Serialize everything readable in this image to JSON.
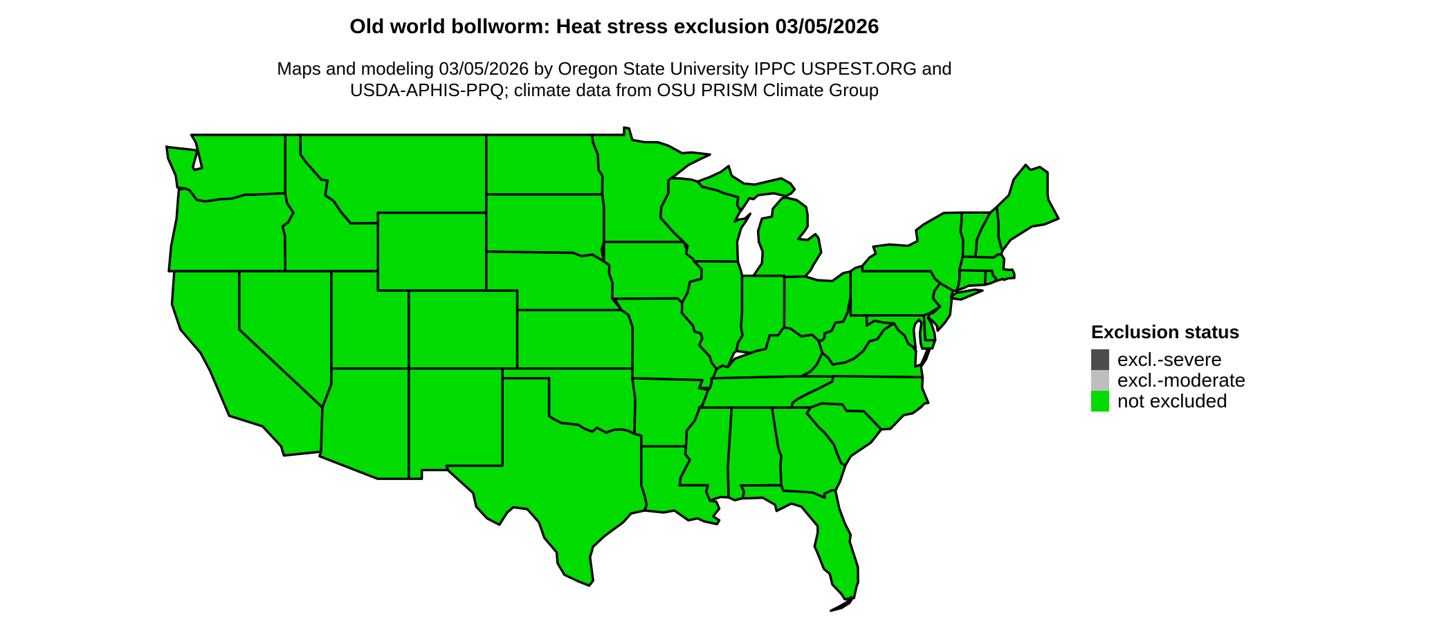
{
  "title": "Old world bollworm: Heat stress exclusion 03/05/2026",
  "subtitle": {
    "line1": "Maps and modeling 03/05/2026 by Oregon State University IPPC USPEST.ORG and",
    "line2": "USDA-APHIS-PPQ; climate data from OSU PRISM Climate Group"
  },
  "legend": {
    "heading": "Exclusion status",
    "items": [
      {
        "label": "excl.-severe",
        "color": "#4D4D4D"
      },
      {
        "label": "excl.-moderate",
        "color": "#BEBEBE"
      },
      {
        "label": "not excluded",
        "color": "#00DC00"
      }
    ]
  },
  "map": {
    "status_all_states": "not excluded",
    "fill_color": "#00DC00",
    "border_color": "#000000",
    "background_color": "#FFFFFF"
  }
}
